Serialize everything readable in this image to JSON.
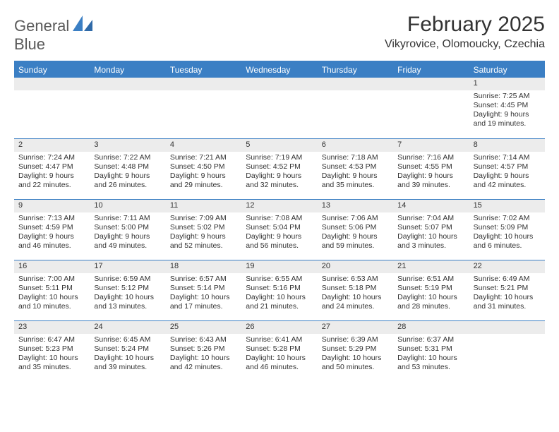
{
  "logo": {
    "word1": "General",
    "word2": "Blue"
  },
  "title": "February 2025",
  "subtitle": "Vikyrovice, Olomoucky, Czechia",
  "colors": {
    "accent": "#3b7fc4",
    "band": "#ececec",
    "text": "#333333",
    "background": "#ffffff",
    "logo_gray": "#5a5a5a"
  },
  "fonts": {
    "title_size": 30,
    "subtitle_size": 16,
    "weekday_size": 12,
    "cell_size": 10.5
  },
  "weekdays": [
    "Sunday",
    "Monday",
    "Tuesday",
    "Wednesday",
    "Thursday",
    "Friday",
    "Saturday"
  ],
  "weeks": [
    [
      {
        "blank": true
      },
      {
        "blank": true
      },
      {
        "blank": true
      },
      {
        "blank": true
      },
      {
        "blank": true
      },
      {
        "blank": true
      },
      {
        "day": "1",
        "sunrise": "Sunrise: 7:25 AM",
        "sunset": "Sunset: 4:45 PM",
        "daylight1": "Daylight: 9 hours",
        "daylight2": "and 19 minutes."
      }
    ],
    [
      {
        "day": "2",
        "sunrise": "Sunrise: 7:24 AM",
        "sunset": "Sunset: 4:47 PM",
        "daylight1": "Daylight: 9 hours",
        "daylight2": "and 22 minutes."
      },
      {
        "day": "3",
        "sunrise": "Sunrise: 7:22 AM",
        "sunset": "Sunset: 4:48 PM",
        "daylight1": "Daylight: 9 hours",
        "daylight2": "and 26 minutes."
      },
      {
        "day": "4",
        "sunrise": "Sunrise: 7:21 AM",
        "sunset": "Sunset: 4:50 PM",
        "daylight1": "Daylight: 9 hours",
        "daylight2": "and 29 minutes."
      },
      {
        "day": "5",
        "sunrise": "Sunrise: 7:19 AM",
        "sunset": "Sunset: 4:52 PM",
        "daylight1": "Daylight: 9 hours",
        "daylight2": "and 32 minutes."
      },
      {
        "day": "6",
        "sunrise": "Sunrise: 7:18 AM",
        "sunset": "Sunset: 4:53 PM",
        "daylight1": "Daylight: 9 hours",
        "daylight2": "and 35 minutes."
      },
      {
        "day": "7",
        "sunrise": "Sunrise: 7:16 AM",
        "sunset": "Sunset: 4:55 PM",
        "daylight1": "Daylight: 9 hours",
        "daylight2": "and 39 minutes."
      },
      {
        "day": "8",
        "sunrise": "Sunrise: 7:14 AM",
        "sunset": "Sunset: 4:57 PM",
        "daylight1": "Daylight: 9 hours",
        "daylight2": "and 42 minutes."
      }
    ],
    [
      {
        "day": "9",
        "sunrise": "Sunrise: 7:13 AM",
        "sunset": "Sunset: 4:59 PM",
        "daylight1": "Daylight: 9 hours",
        "daylight2": "and 46 minutes."
      },
      {
        "day": "10",
        "sunrise": "Sunrise: 7:11 AM",
        "sunset": "Sunset: 5:00 PM",
        "daylight1": "Daylight: 9 hours",
        "daylight2": "and 49 minutes."
      },
      {
        "day": "11",
        "sunrise": "Sunrise: 7:09 AM",
        "sunset": "Sunset: 5:02 PM",
        "daylight1": "Daylight: 9 hours",
        "daylight2": "and 52 minutes."
      },
      {
        "day": "12",
        "sunrise": "Sunrise: 7:08 AM",
        "sunset": "Sunset: 5:04 PM",
        "daylight1": "Daylight: 9 hours",
        "daylight2": "and 56 minutes."
      },
      {
        "day": "13",
        "sunrise": "Sunrise: 7:06 AM",
        "sunset": "Sunset: 5:06 PM",
        "daylight1": "Daylight: 9 hours",
        "daylight2": "and 59 minutes."
      },
      {
        "day": "14",
        "sunrise": "Sunrise: 7:04 AM",
        "sunset": "Sunset: 5:07 PM",
        "daylight1": "Daylight: 10 hours",
        "daylight2": "and 3 minutes."
      },
      {
        "day": "15",
        "sunrise": "Sunrise: 7:02 AM",
        "sunset": "Sunset: 5:09 PM",
        "daylight1": "Daylight: 10 hours",
        "daylight2": "and 6 minutes."
      }
    ],
    [
      {
        "day": "16",
        "sunrise": "Sunrise: 7:00 AM",
        "sunset": "Sunset: 5:11 PM",
        "daylight1": "Daylight: 10 hours",
        "daylight2": "and 10 minutes."
      },
      {
        "day": "17",
        "sunrise": "Sunrise: 6:59 AM",
        "sunset": "Sunset: 5:12 PM",
        "daylight1": "Daylight: 10 hours",
        "daylight2": "and 13 minutes."
      },
      {
        "day": "18",
        "sunrise": "Sunrise: 6:57 AM",
        "sunset": "Sunset: 5:14 PM",
        "daylight1": "Daylight: 10 hours",
        "daylight2": "and 17 minutes."
      },
      {
        "day": "19",
        "sunrise": "Sunrise: 6:55 AM",
        "sunset": "Sunset: 5:16 PM",
        "daylight1": "Daylight: 10 hours",
        "daylight2": "and 21 minutes."
      },
      {
        "day": "20",
        "sunrise": "Sunrise: 6:53 AM",
        "sunset": "Sunset: 5:18 PM",
        "daylight1": "Daylight: 10 hours",
        "daylight2": "and 24 minutes."
      },
      {
        "day": "21",
        "sunrise": "Sunrise: 6:51 AM",
        "sunset": "Sunset: 5:19 PM",
        "daylight1": "Daylight: 10 hours",
        "daylight2": "and 28 minutes."
      },
      {
        "day": "22",
        "sunrise": "Sunrise: 6:49 AM",
        "sunset": "Sunset: 5:21 PM",
        "daylight1": "Daylight: 10 hours",
        "daylight2": "and 31 minutes."
      }
    ],
    [
      {
        "day": "23",
        "sunrise": "Sunrise: 6:47 AM",
        "sunset": "Sunset: 5:23 PM",
        "daylight1": "Daylight: 10 hours",
        "daylight2": "and 35 minutes."
      },
      {
        "day": "24",
        "sunrise": "Sunrise: 6:45 AM",
        "sunset": "Sunset: 5:24 PM",
        "daylight1": "Daylight: 10 hours",
        "daylight2": "and 39 minutes."
      },
      {
        "day": "25",
        "sunrise": "Sunrise: 6:43 AM",
        "sunset": "Sunset: 5:26 PM",
        "daylight1": "Daylight: 10 hours",
        "daylight2": "and 42 minutes."
      },
      {
        "day": "26",
        "sunrise": "Sunrise: 6:41 AM",
        "sunset": "Sunset: 5:28 PM",
        "daylight1": "Daylight: 10 hours",
        "daylight2": "and 46 minutes."
      },
      {
        "day": "27",
        "sunrise": "Sunrise: 6:39 AM",
        "sunset": "Sunset: 5:29 PM",
        "daylight1": "Daylight: 10 hours",
        "daylight2": "and 50 minutes."
      },
      {
        "day": "28",
        "sunrise": "Sunrise: 6:37 AM",
        "sunset": "Sunset: 5:31 PM",
        "daylight1": "Daylight: 10 hours",
        "daylight2": "and 53 minutes."
      },
      {
        "blank": true
      }
    ]
  ]
}
